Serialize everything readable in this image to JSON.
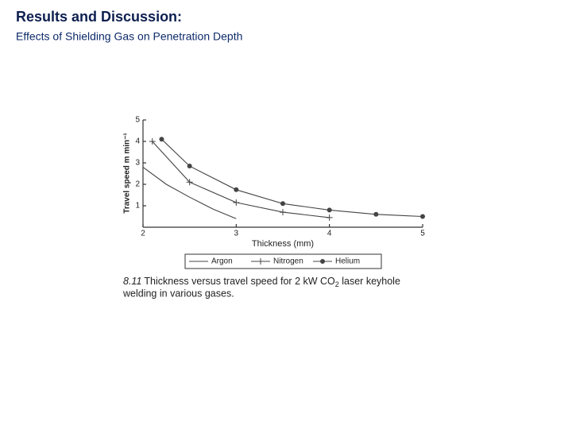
{
  "header": {
    "title": "Results and Discussion:",
    "subtitle": "Effects of Shielding Gas on Penetration Depth"
  },
  "chart_data": {
    "type": "line",
    "xlabel": "Thickness (mm)",
    "ylabel": "Travel speed m min⁻¹",
    "caption_number": "8.11",
    "caption_before": "Thickness versus travel speed for 2 kW CO",
    "caption_sub": "2",
    "caption_after": " laser keyhole",
    "caption_line2": "welding in various gases.",
    "xlim": [
      2,
      5
    ],
    "xticks": [
      2,
      3,
      4,
      5
    ],
    "ylim": [
      0,
      5
    ],
    "yticks": [
      1,
      2,
      3,
      4,
      5
    ],
    "series": [
      {
        "name": "Argon",
        "color": "#444444",
        "marker": "none",
        "x": [
          2,
          2.25,
          2.5,
          2.75,
          3
        ],
        "values": [
          2.8,
          2.0,
          1.4,
          0.85,
          0.4
        ]
      },
      {
        "name": "Nitrogen",
        "color": "#444444",
        "marker": "plus",
        "x": [
          2.1,
          2.5,
          3,
          3.5,
          4
        ],
        "values": [
          4.0,
          2.1,
          1.15,
          0.7,
          0.45
        ]
      },
      {
        "name": "Helium",
        "color": "#444444",
        "marker": "dot",
        "x": [
          2.2,
          2.5,
          3,
          3.5,
          4,
          4.5,
          5
        ],
        "values": [
          4.1,
          2.85,
          1.75,
          1.1,
          0.8,
          0.6,
          0.5
        ]
      }
    ]
  }
}
